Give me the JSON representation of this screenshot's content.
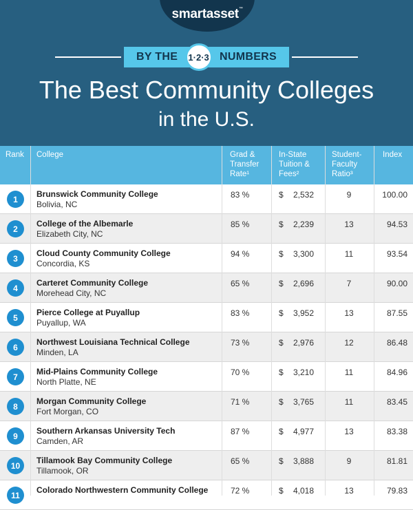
{
  "brand": {
    "name": "smartasset",
    "mark": "™"
  },
  "banner": {
    "left": "BY THE",
    "circle": "1·2·3",
    "right": "NUMBERS"
  },
  "title": "The Best Community Colleges",
  "subtitle": "in the U.S.",
  "columns": {
    "rank": "Rank",
    "college": "College",
    "grad": [
      "Grad &",
      "Transfer",
      "Rate¹"
    ],
    "tuition": [
      "In-State",
      "Tuition &",
      "Fees²"
    ],
    "ratio": [
      "Student-",
      "Faculty",
      "Ratio³"
    ],
    "index": "Index"
  },
  "rows": [
    {
      "rank": "1",
      "name": "Brunswick Community College",
      "location": "Bolivia, NC",
      "grad": "83 %",
      "tuition": "2,532",
      "ratio": "9",
      "index": "100.00"
    },
    {
      "rank": "2",
      "name": "College of the Albemarle",
      "location": "Elizabeth City, NC",
      "grad": "85 %",
      "tuition": "2,239",
      "ratio": "13",
      "index": "94.53"
    },
    {
      "rank": "3",
      "name": "Cloud County Community College",
      "location": "Concordia, KS",
      "grad": "94 %",
      "tuition": "3,300",
      "ratio": "11",
      "index": "93.54"
    },
    {
      "rank": "4",
      "name": "Carteret Community College",
      "location": "Morehead City, NC",
      "grad": "65 %",
      "tuition": "2,696",
      "ratio": "7",
      "index": "90.00"
    },
    {
      "rank": "5",
      "name": "Pierce College at Puyallup",
      "location": "Puyallup, WA",
      "grad": "83 %",
      "tuition": "3,952",
      "ratio": "13",
      "index": "87.55"
    },
    {
      "rank": "6",
      "name": "Northwest Louisiana Technical College",
      "location": "Minden, LA",
      "grad": "73 %",
      "tuition": "2,976",
      "ratio": "12",
      "index": "86.48"
    },
    {
      "rank": "7",
      "name": "Mid-Plains Community College",
      "location": "North Platte, NE",
      "grad": "70 %",
      "tuition": "3,210",
      "ratio": "11",
      "index": "84.96"
    },
    {
      "rank": "8",
      "name": "Morgan Community College",
      "location": "Fort Morgan, CO",
      "grad": "71 %",
      "tuition": "3,765",
      "ratio": "11",
      "index": "83.45"
    },
    {
      "rank": "9",
      "name": "Southern Arkansas University Tech",
      "location": "Camden, AR",
      "grad": "87 %",
      "tuition": "4,977",
      "ratio": "13",
      "index": "83.38"
    },
    {
      "rank": "10",
      "name": "Tillamook Bay Community College",
      "location": "Tillamook, OR",
      "grad": "65 %",
      "tuition": "3,888",
      "ratio": "9",
      "index": "81.81"
    },
    {
      "rank": "11",
      "name": "Colorado Northwestern Community College",
      "location": "",
      "grad": "72 %",
      "tuition": "4,018",
      "ratio": "13",
      "index": "79.83"
    }
  ],
  "currency": "$",
  "colors": {
    "header": "#275f80",
    "accent": "#56c7ea",
    "badge": "#1f8fd0",
    "table_head": "#56b6e0"
  }
}
